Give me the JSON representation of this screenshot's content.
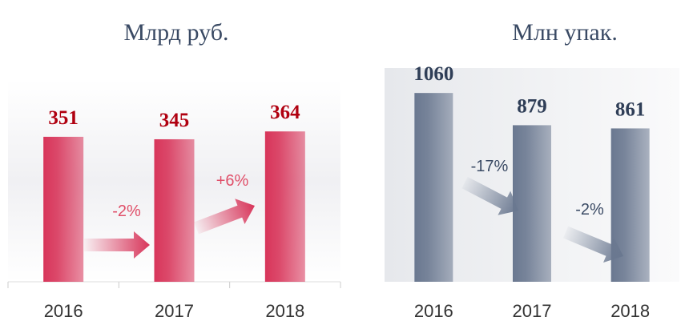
{
  "chart_data": [
    {
      "type": "bar",
      "title": "Млрд руб.",
      "categories": [
        "2016",
        "2017",
        "2018"
      ],
      "values": [
        351,
        345,
        364
      ],
      "color": "#d8355a",
      "label_color": "#b00010",
      "ylim": [
        0,
        500
      ],
      "annotations": [
        "-2%",
        "+6%"
      ],
      "annotation_color": "#e0506a"
    },
    {
      "type": "bar",
      "title": "Млн упак.",
      "categories": [
        "2016",
        "2017",
        "2018"
      ],
      "values": [
        1060,
        879,
        861
      ],
      "color": "#6a7890",
      "label_color": "#2f3e57",
      "ylim": [
        0,
        1200
      ],
      "annotations": [
        "-17%",
        "-2%"
      ],
      "annotation_color": "#3a4a64"
    }
  ]
}
